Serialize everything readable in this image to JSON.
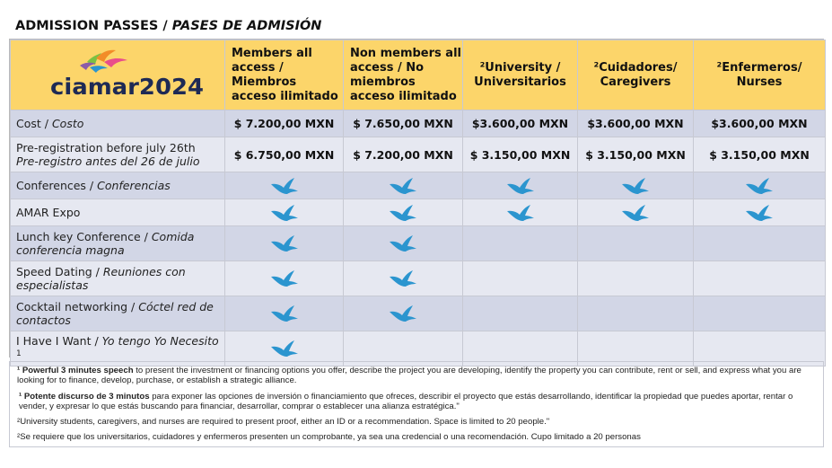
{
  "title": {
    "main": "ADMISSION PASSES / ",
    "italic": "PASES DE ADMISIÓN"
  },
  "logo": {
    "text": "ciamar2024"
  },
  "columns": [
    "Members all access / Miembros acceso ilimitado",
    "Non members all access / No miembros acceso ilimitado",
    "²University / Universitarios",
    "²Cuidadores/ Caregivers",
    "²Enfermeros/ Nurses"
  ],
  "rows": [
    {
      "label": "Cost / ",
      "label_es": "Costo",
      "prices": [
        "$ 7.200,00 MXN",
        "$ 7.650,00 MXN",
        "$3.600,00 MXN",
        "$3.600,00 MXN",
        "$3.600,00 MXN"
      ]
    },
    {
      "label": "Pre-registration before july 26th",
      "label_es": "Pre-registro antes del 26 de julio",
      "prices": [
        "$ 6.750,00 MXN",
        "$ 7.200,00 MXN",
        "$ 3.150,00 MXN",
        "$ 3.150,00 MXN",
        "$ 3.150,00 MXN"
      ]
    },
    {
      "label": "Conferences / ",
      "label_es": "Conferencias",
      "marks": [
        true,
        true,
        true,
        true,
        true
      ]
    },
    {
      "label": "AMAR Expo",
      "label_es": "",
      "marks": [
        true,
        true,
        true,
        true,
        true
      ]
    },
    {
      "label": "Lunch key Conference / ",
      "label_es": "Comida conferencia magna",
      "marks": [
        true,
        true,
        false,
        false,
        false
      ]
    },
    {
      "label": "Speed Dating / ",
      "label_es": "Reuniones con especialistas",
      "marks": [
        true,
        true,
        false,
        false,
        false
      ]
    },
    {
      "label": "Cocktail networking / ",
      "label_es": "Cóctel red de contactos",
      "marks": [
        true,
        true,
        false,
        false,
        false
      ]
    },
    {
      "label": "I Have I Want / ",
      "label_es": "Yo tengo Yo Necesito",
      "footnote": "1",
      "marks": [
        true,
        false,
        false,
        false,
        false
      ]
    }
  ],
  "notes": {
    "n1_en_bold": "¹ Powerful 3 minutes speech",
    "n1_en": " to present the investment or financing options you offer, describe the project you are developing, identify the property you can contribute, rent or sell, and express what you are looking for to finance, develop, purchase, or establish a strategic alliance.",
    "n1_es_bold": "¹ Potente discurso de 3 minutos",
    "n1_es": " para exponer las opciones de inversión o financiamiento que ofreces, describir el proyecto que estás desarrollando, identificar la propiedad que puedes aportar, rentar o vender, y expresar lo que estás buscando para financiar, desarrollar, comprar o establecer una alianza estratégica.\"",
    "n2_en": "²University students, caregivers, and nurses are required to present proof, either an ID or a recommendation. Space is limited to 20 people.\"",
    "n2_es": "²Se requiere que los universitarios, cuidadores y enfermeros presenten un comprobante, ya sea una credencial o una recomendación. Cupo limitado a 20 personas"
  },
  "colors": {
    "header": "#fcd56a",
    "row_dark": "#d2d6e6",
    "row_light": "#e6e8f1",
    "bird": "#2b95cf"
  }
}
